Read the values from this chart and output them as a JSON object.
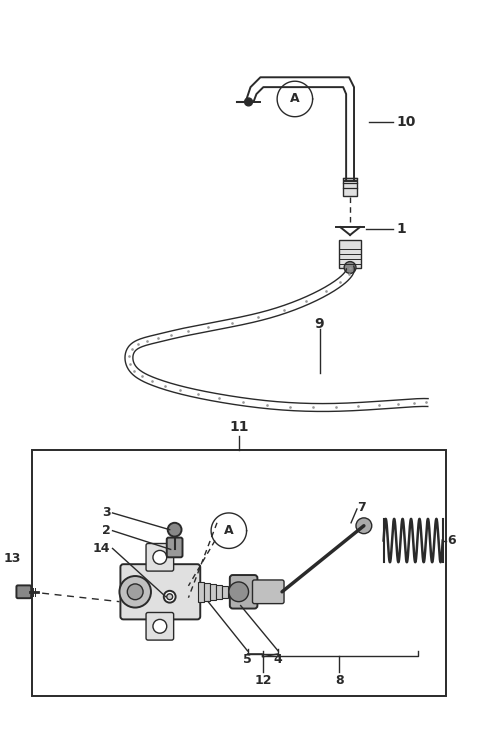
{
  "background_color": "#ffffff",
  "line_color": "#2a2a2a",
  "fig_width": 4.8,
  "fig_height": 7.43,
  "dpi": 100,
  "top_pipe_color": "#d0d0d0",
  "hose_color": "#c8c8c8",
  "part_fill": "#e0e0e0",
  "part_dark": "#888888"
}
